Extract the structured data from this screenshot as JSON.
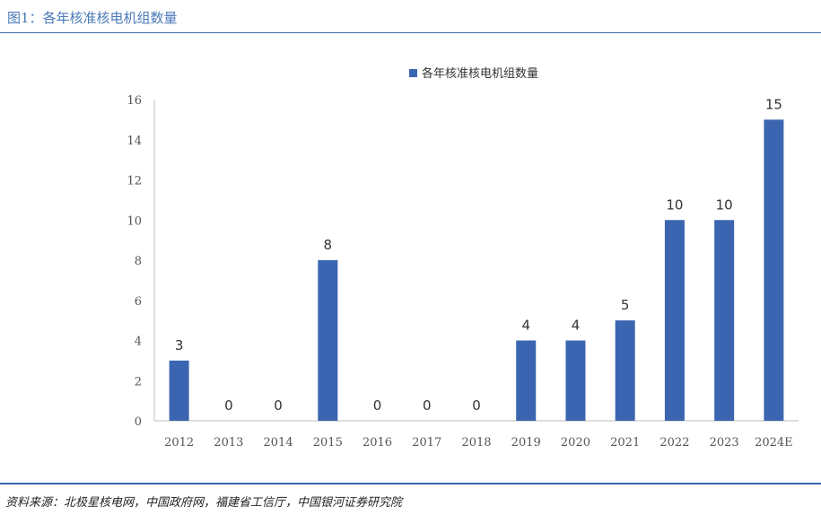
{
  "figure": {
    "title": "图1：各年核准核电机组数量",
    "source": "资料来源：北极星核电网，中国政府网，福建省工信厅，中国银河证券研究院"
  },
  "chart_data": {
    "type": "bar",
    "categories": [
      "2012",
      "2013",
      "2014",
      "2015",
      "2016",
      "2017",
      "2018",
      "2019",
      "2020",
      "2021",
      "2022",
      "2023",
      "2024E"
    ],
    "series": [
      {
        "name": "各年核准核电机组数量",
        "values": [
          3,
          0,
          0,
          8,
          0,
          0,
          0,
          4,
          4,
          5,
          10,
          10,
          15
        ],
        "color": "#3b65b0"
      }
    ],
    "ylim": [
      0,
      16
    ],
    "yticks": [
      0,
      2,
      4,
      6,
      8,
      10,
      12,
      14,
      16
    ],
    "xlabel": "",
    "ylabel": "",
    "grid": false,
    "legend": "top-center",
    "data_labels": true
  }
}
